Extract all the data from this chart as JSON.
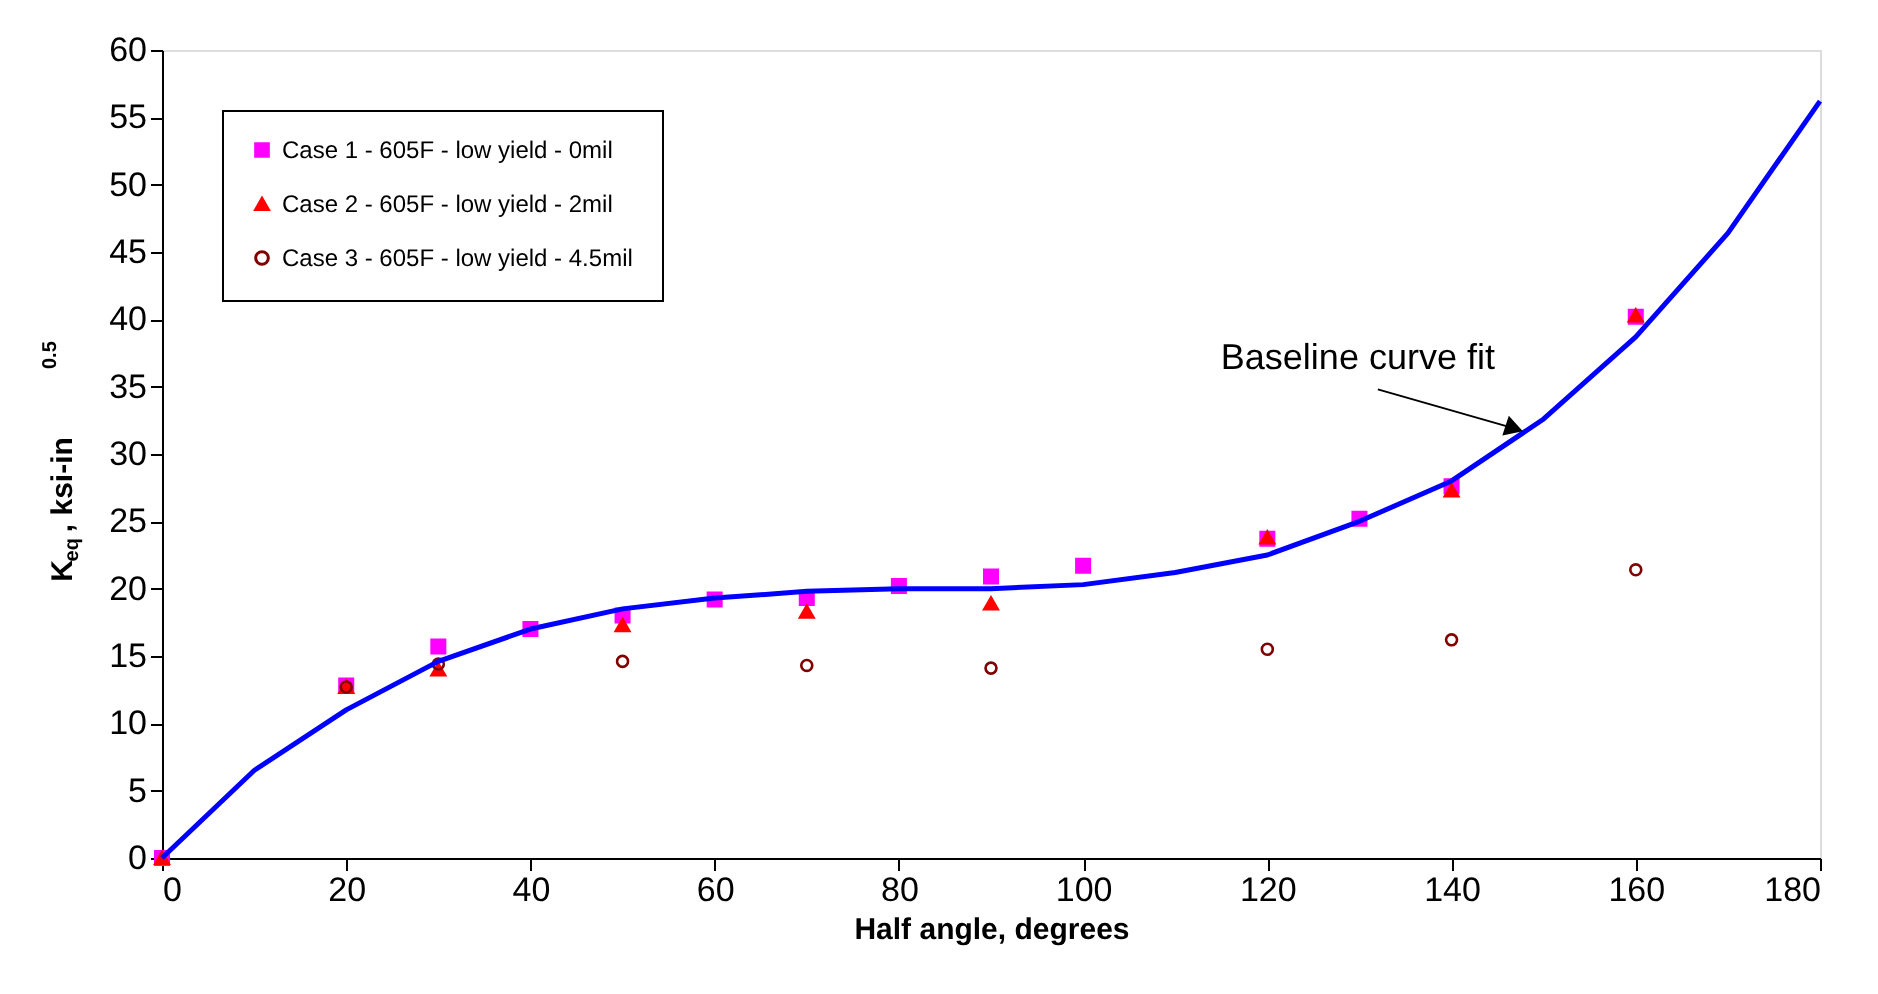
{
  "chart_data": {
    "type": "scatter",
    "xlabel": "Half angle, degrees",
    "ylabel": "K$_{eq}$, ksi-in$^{0.5}$",
    "xlim": [
      0,
      180
    ],
    "xticks": [
      0,
      20,
      40,
      60,
      80,
      100,
      120,
      140,
      160,
      180
    ],
    "ylim": [
      0,
      60
    ],
    "yticks": [
      0,
      5,
      10,
      15,
      20,
      25,
      30,
      35,
      40,
      45,
      50,
      55,
      60
    ],
    "grid": false,
    "legend": "top left",
    "series": [
      {
        "name": "Case 1 - 605F - low yield - 0mil",
        "marker": "square",
        "color": "#ff00ff",
        "x": [
          0,
          20,
          30,
          40,
          50,
          60,
          70,
          80,
          90,
          100,
          120,
          130,
          140,
          160
        ],
        "values": [
          0,
          12.8,
          15.7,
          17,
          18,
          19.2,
          19.3,
          20.2,
          20.9,
          21.7,
          23.7,
          25.2,
          27.6,
          40.2
        ]
      },
      {
        "name": "Case 2 - 605F - low yield - 2mil",
        "marker": "triangle",
        "color": "#ff0000",
        "x": [
          0,
          20,
          30,
          50,
          70,
          90,
          120,
          140,
          160
        ],
        "values": [
          0,
          12.7,
          14,
          17.3,
          18.3,
          18.9,
          23.8,
          27.3,
          40.3
        ]
      },
      {
        "name": "Case 3 - 605F - low yield - 4.5mil",
        "marker": "circle",
        "color": "#800000",
        "x": [
          20,
          30,
          50,
          70,
          90,
          120,
          140,
          160
        ],
        "values": [
          12.7,
          14.4,
          14.6,
          14.3,
          14.1,
          15.5,
          16.2,
          21.4
        ]
      },
      {
        "type": "line",
        "marker": "none",
        "color": "#0000ff",
        "x": [
          0,
          10,
          20,
          30,
          40,
          50,
          60,
          70,
          80,
          90,
          100,
          110,
          120,
          130,
          140,
          150,
          160,
          170,
          180
        ],
        "values": [
          0,
          6.5,
          11,
          14.6,
          17,
          18.5,
          19.3,
          19.8,
          20,
          20,
          20.3,
          21.2,
          22.5,
          25,
          28,
          32.6,
          38.7,
          46.4,
          56.2
        ]
      }
    ],
    "annotations": [
      {
        "text": "Baseline curve fit",
        "x": 148,
        "y": 31.5
      }
    ]
  }
}
